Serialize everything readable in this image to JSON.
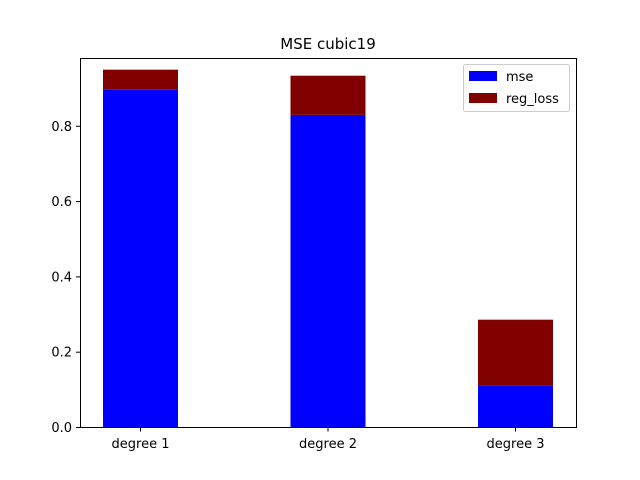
{
  "chart_data": {
    "type": "bar",
    "stacked": true,
    "title": "MSE cubic19",
    "xlabel": "",
    "ylabel": "",
    "categories": [
      "degree 1",
      "degree 2",
      "degree 3"
    ],
    "series": [
      {
        "name": "mse",
        "color": "#0000ff",
        "values": [
          0.897,
          0.829,
          0.111
        ]
      },
      {
        "name": "reg_loss",
        "color": "#800000",
        "values": [
          0.052,
          0.104,
          0.174
        ]
      }
    ],
    "ylim": [
      0,
      0.98
    ],
    "yticks": [
      0.0,
      0.2,
      0.4,
      0.6,
      0.8
    ],
    "ytick_labels": [
      "0.0",
      "0.2",
      "0.4",
      "0.6",
      "0.8"
    ],
    "grid": false,
    "legend_position": "top-right"
  }
}
